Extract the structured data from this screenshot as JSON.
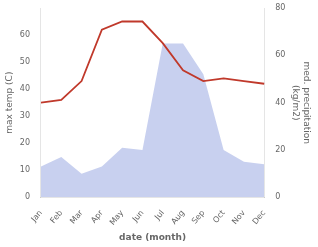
{
  "chart_data": {
    "type": "line",
    "categories": [
      "Jan",
      "Feb",
      "Mar",
      "Apr",
      "May",
      "Jun",
      "Jul",
      "Aug",
      "Sep",
      "Oct",
      "Nov",
      "Dec"
    ],
    "series": [
      {
        "type": "area",
        "color": "#b0bce8",
        "axis": "y2",
        "values": [
          13,
          17,
          10,
          13,
          21,
          20,
          65,
          65,
          52,
          20,
          15,
          14
        ]
      },
      {
        "type": "line",
        "color": "#c0392b",
        "values": [
          35,
          36,
          43,
          62,
          65,
          65,
          57,
          47,
          43,
          44,
          43,
          42
        ]
      }
    ],
    "xlabel": "date (month)",
    "ylabel": "max temp (C)",
    "y2label": "med. precipitation\n(kg/m2)",
    "ylim": [
      0,
      70
    ],
    "yticks": [
      0,
      10,
      20,
      30,
      40,
      50,
      60
    ],
    "y2lim": [
      0,
      80
    ],
    "y2ticks": [
      0,
      20,
      40,
      60,
      80
    ],
    "grid": false
  }
}
